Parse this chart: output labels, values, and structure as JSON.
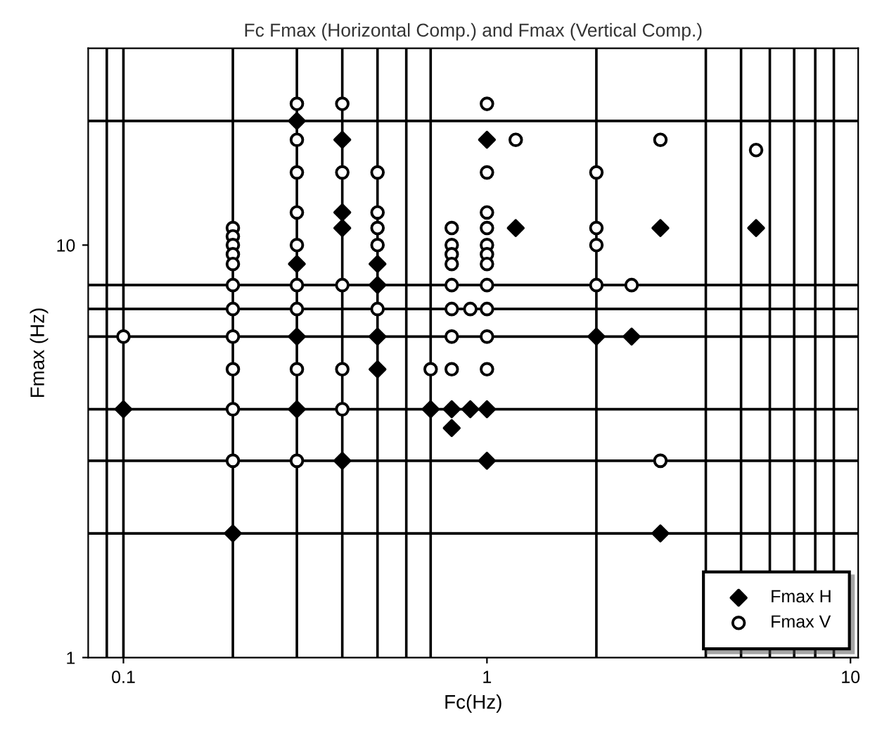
{
  "chart_data": {
    "type": "scatter",
    "title": "Fc Fmax (Horizontal Comp.) and Fmax (Vertical Comp.)",
    "xlabel": "Fc(Hz)",
    "ylabel": "Fmax (Hz)",
    "log": "xy",
    "xlim": [
      0.08,
      10.5
    ],
    "ylim": [
      1,
      30
    ],
    "xticks": [
      {
        "value": 0.1,
        "label": "0.1"
      },
      1,
      10
    ],
    "yticks": [
      1,
      10
    ],
    "grid": false,
    "legend": "bottom right",
    "ref_lines": [
      {
        "axis": "x",
        "value": 0.09,
        "color": "#000000"
      },
      {
        "axis": "x",
        "value": 0.1,
        "color": "#000000"
      },
      {
        "axis": "x",
        "value": 0.2,
        "color": "#000000"
      },
      {
        "axis": "x",
        "value": 0.3,
        "color": "#000000"
      },
      {
        "axis": "x",
        "value": 0.4,
        "color": "#000000"
      },
      {
        "axis": "x",
        "value": 0.5,
        "color": "#000000"
      },
      {
        "axis": "x",
        "value": 0.6,
        "color": "#000000"
      },
      {
        "axis": "x",
        "value": 0.7,
        "color": "#000000"
      },
      {
        "axis": "x",
        "value": 2,
        "color": "#000000"
      },
      {
        "axis": "x",
        "value": 4,
        "color": "#000000"
      },
      {
        "axis": "x",
        "value": 5,
        "color": "#000000"
      },
      {
        "axis": "x",
        "value": 6,
        "color": "#000000"
      },
      {
        "axis": "x",
        "value": 7,
        "color": "#000000"
      },
      {
        "axis": "x",
        "value": 8,
        "color": "#000000"
      },
      {
        "axis": "x",
        "value": 9,
        "color": "#000000"
      },
      {
        "axis": "y",
        "value": 2,
        "color": "#000000"
      },
      {
        "axis": "y",
        "value": 3,
        "color": "#000000"
      },
      {
        "axis": "y",
        "value": 4,
        "color": "#000000"
      },
      {
        "axis": "y",
        "value": 6,
        "color": "#000000"
      },
      {
        "axis": "y",
        "value": 7,
        "color": "#000000"
      },
      {
        "axis": "y",
        "value": 8,
        "color": "#000000"
      },
      {
        "axis": "y",
        "value": 20,
        "color": "#000000"
      }
    ],
    "series": [
      {
        "name": "Fmax H",
        "color": "#000000",
        "marker": "diamond",
        "x": [
          0.1,
          0.2,
          0.3,
          0.3,
          0.3,
          0.3,
          0.4,
          0.4,
          0.4,
          0.4,
          0.5,
          0.5,
          0.5,
          0.5,
          0.7,
          0.8,
          0.9,
          1.0,
          0.8,
          1.0,
          1.0,
          1.2,
          2,
          2.5,
          3,
          3,
          5.5
        ],
        "values": [
          4,
          2,
          20,
          9,
          6,
          4,
          18,
          12,
          11,
          3,
          9,
          8,
          6,
          5,
          4,
          4,
          4,
          4,
          3.6,
          3,
          18,
          11,
          6,
          6,
          11,
          2,
          11
        ]
      },
      {
        "name": "Fmax V",
        "color": "#000000",
        "marker": "circle",
        "x": [
          0.1,
          0.2,
          0.2,
          0.2,
          0.2,
          0.2,
          0.2,
          0.2,
          0.2,
          0.2,
          0.2,
          0.2,
          0.3,
          0.3,
          0.3,
          0.3,
          0.3,
          0.3,
          0.3,
          0.3,
          0.3,
          0.4,
          0.4,
          0.4,
          0.4,
          0.4,
          0.5,
          0.5,
          0.5,
          0.5,
          0.5,
          0.8,
          0.8,
          0.8,
          0.8,
          0.8,
          0.8,
          0.8,
          0.9,
          0.7,
          0.8,
          1.0,
          1.0,
          1.0,
          1.0,
          1.0,
          1.0,
          1.0,
          1.0,
          1.0,
          1.0,
          1.0,
          1.2,
          2,
          2,
          2,
          2,
          2.5,
          3,
          3,
          5.5
        ],
        "values": [
          6,
          11,
          10.5,
          10,
          9.5,
          9,
          8,
          7,
          6,
          5,
          4,
          3,
          22,
          18,
          15,
          12,
          10,
          8,
          7,
          5,
          3,
          22,
          15,
          8,
          5,
          4,
          15,
          12,
          11,
          10,
          7,
          11,
          10,
          9.5,
          9,
          8,
          7,
          6,
          7,
          5,
          5,
          22,
          15,
          12,
          11,
          10,
          9.5,
          9,
          8,
          7,
          6,
          5,
          18,
          15,
          11,
          10,
          8,
          8,
          18,
          3,
          17
        ]
      }
    ]
  }
}
